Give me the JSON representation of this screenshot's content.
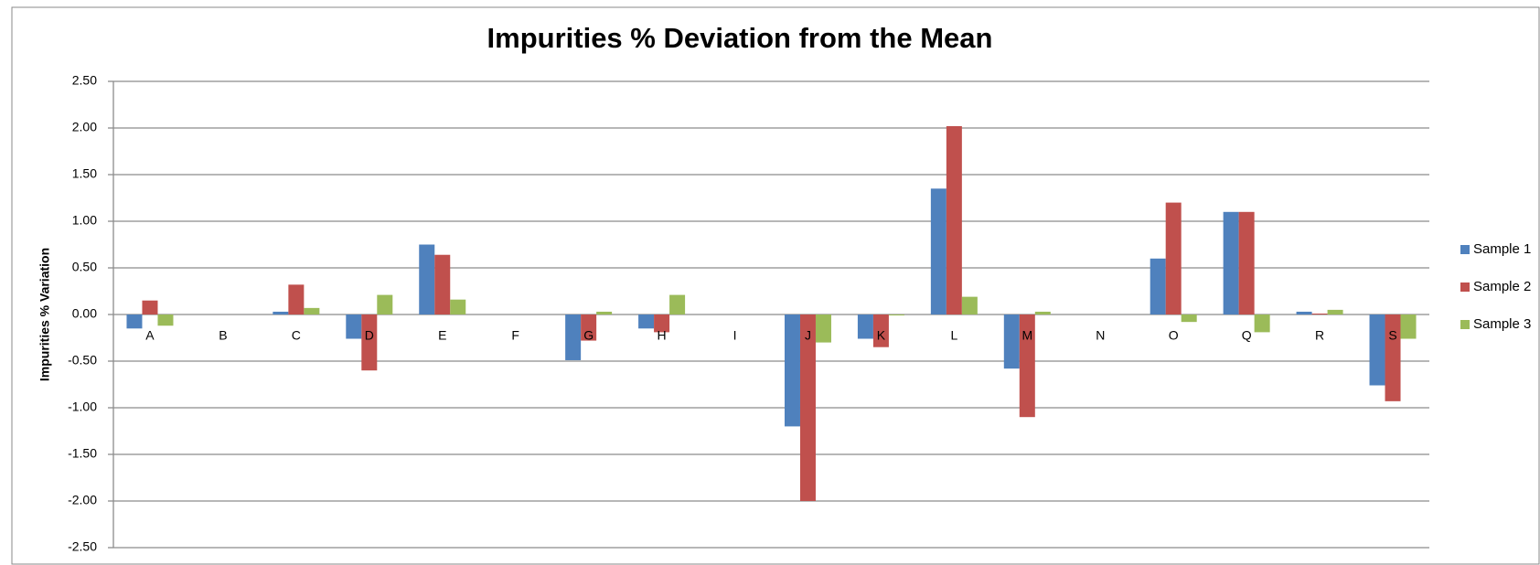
{
  "chart_data": {
    "type": "bar",
    "title": "Impurities % Deviation from the Mean",
    "y_label": "Impurities % Variation",
    "categories": [
      "A",
      "B",
      "C",
      "D",
      "E",
      "F",
      "G",
      "H",
      "I",
      "J",
      "K",
      "L",
      "M",
      "N",
      "O",
      "Q",
      "R",
      "S"
    ],
    "series": [
      {
        "name": "Sample 1",
        "color": "#4f81bd",
        "values": [
          -0.15,
          0,
          0.03,
          -0.26,
          0.75,
          0,
          -0.49,
          -0.15,
          0,
          -1.2,
          -0.26,
          1.35,
          -0.58,
          0,
          0.6,
          1.1,
          0.03,
          -0.76
        ]
      },
      {
        "name": "Sample 2",
        "color": "#c0504d",
        "values": [
          0.15,
          0,
          0.32,
          -0.6,
          0.64,
          0,
          -0.28,
          -0.19,
          0,
          -2.0,
          -0.35,
          2.02,
          -1.1,
          0,
          1.2,
          1.1,
          0.01,
          -0.93
        ]
      },
      {
        "name": "Sample 3",
        "color": "#9bbb59",
        "values": [
          -0.12,
          0,
          0.07,
          0.21,
          0.16,
          0,
          0.03,
          0.21,
          0,
          -0.3,
          -0.01,
          0.19,
          0.03,
          0,
          -0.08,
          -0.19,
          0.05,
          -0.26
        ]
      }
    ],
    "ylim": [
      -2.5,
      2.5
    ],
    "yticks": [
      {
        "value": -2.5,
        "label": "-2.50"
      },
      {
        "value": -2,
        "label": "-2.00"
      },
      {
        "value": -1.5,
        "label": "-1.50"
      },
      {
        "value": -1,
        "label": "-1.00"
      },
      {
        "value": -0.5,
        "label": "-0.50"
      },
      {
        "value": 0,
        "label": "0.00"
      },
      {
        "value": 0.5,
        "label": "0.50"
      },
      {
        "value": 1,
        "label": "1.00"
      },
      {
        "value": 1.5,
        "label": "1.50"
      },
      {
        "value": 2,
        "label": "2.00"
      },
      {
        "value": 2.5,
        "label": "2.50"
      }
    ],
    "grid": true,
    "legend": "right"
  }
}
